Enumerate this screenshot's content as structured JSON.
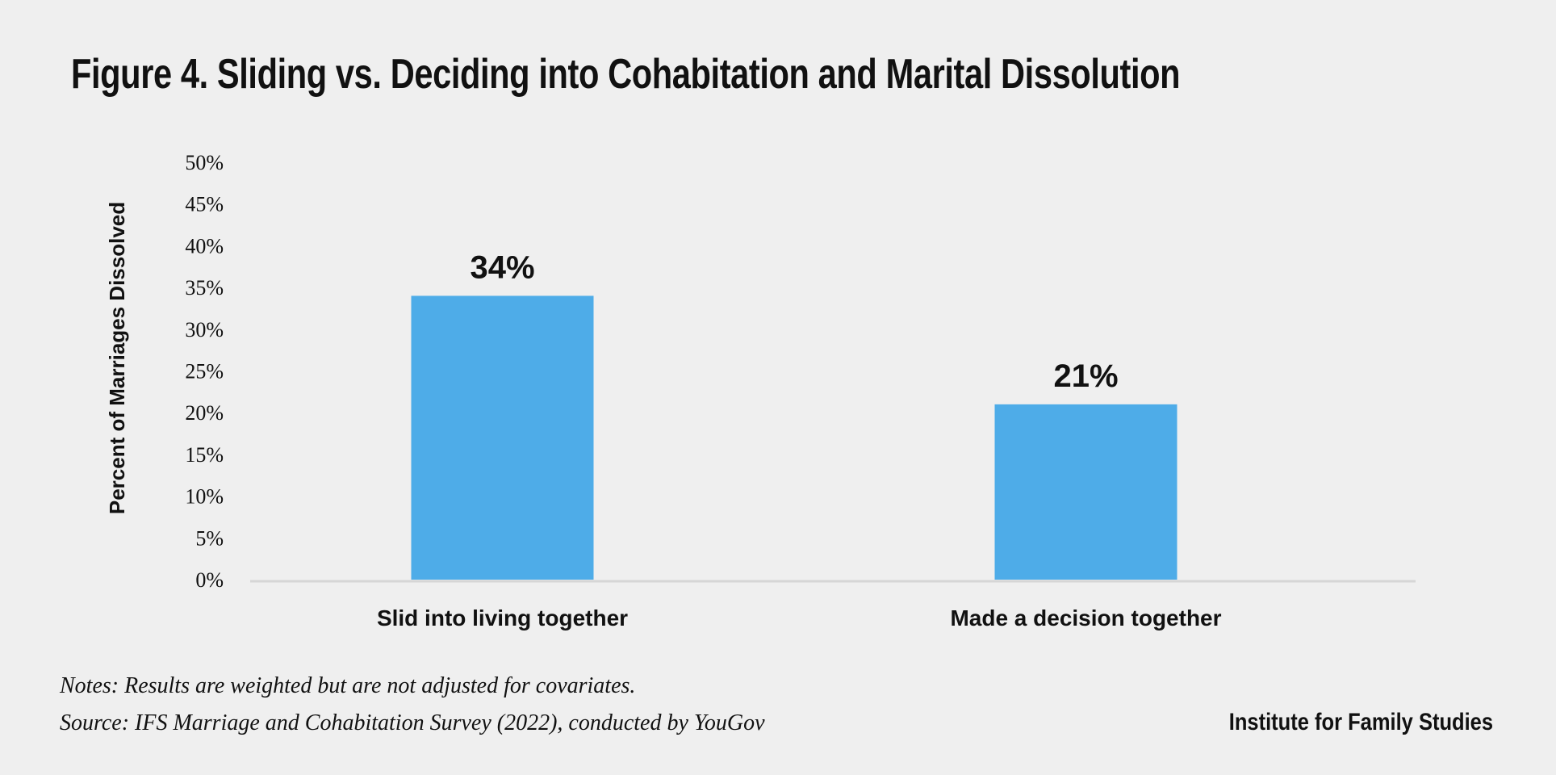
{
  "chart_data": {
    "type": "bar",
    "title": "Figure 4. Sliding vs. Deciding into Cohabitation and Marital Dissolution",
    "ylabel": "Percent of Marriages Dissolved",
    "xlabel": "",
    "categories": [
      "Slid into living together",
      "Made a decision together"
    ],
    "values": [
      34,
      21
    ],
    "data_labels": [
      "34%",
      "21%"
    ],
    "ylim": [
      0,
      50
    ],
    "yticks": [
      "0%",
      "5%",
      "10%",
      "15%",
      "20%",
      "25%",
      "30%",
      "35%",
      "40%",
      "45%",
      "50%"
    ],
    "bar_color": "#4eace8",
    "baseline_color": "#d6d6d6",
    "grid": false,
    "legend": "none"
  },
  "notes": {
    "line1": "Notes: Results are weighted but are not adjusted for covariates.",
    "line2": "Source: IFS Marriage and Cohabitation Survey (2022), conducted by YouGov"
  },
  "brand": "Institute for Family Studies"
}
